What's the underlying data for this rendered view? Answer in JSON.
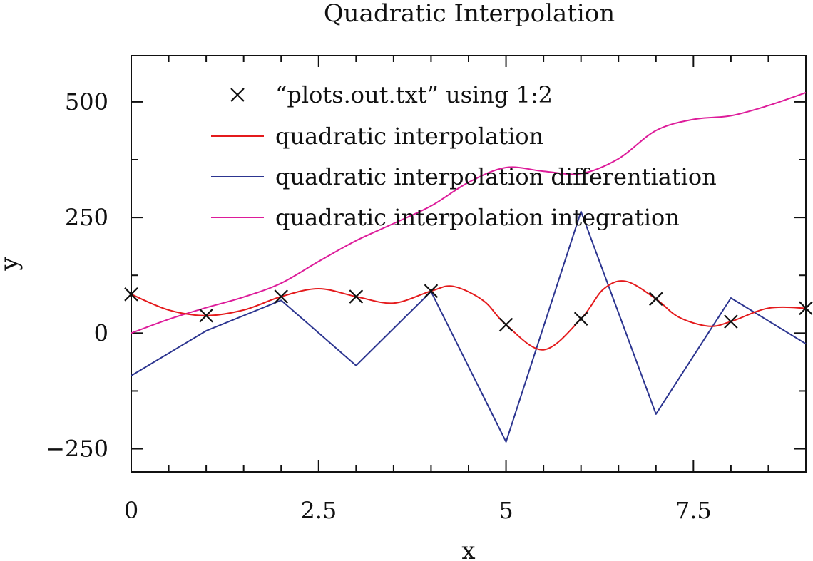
{
  "chart_data": {
    "type": "line",
    "title": "Quadratic Interpolation",
    "xlabel": "x",
    "ylabel": "y",
    "xlim": [
      0,
      9
    ],
    "ylim": [
      -300,
      600
    ],
    "xticks": [
      0,
      2.5,
      5,
      7.5
    ],
    "xtick_labels": [
      "0",
      "2.5",
      "5",
      "7.5"
    ],
    "yticks": [
      -250,
      0,
      250,
      500
    ],
    "ytick_labels": [
      "−250",
      "0",
      "250",
      "500"
    ],
    "grid": false,
    "legend_position": "top-right",
    "series": [
      {
        "name": "“plots.out.txt” using 1:2",
        "style": "points",
        "marker": "x",
        "color": "#111111",
        "x": [
          0,
          1,
          2,
          3,
          4,
          5,
          6,
          7,
          8,
          9
        ],
        "y": [
          84,
          38,
          79,
          79,
          91,
          18,
          31,
          74,
          25,
          54
        ]
      },
      {
        "name": "quadratic interpolation",
        "style": "line",
        "color": "#e41a1c",
        "x": [
          0,
          0.5,
          1,
          1.5,
          2,
          2.5,
          3,
          3.5,
          4,
          4.3,
          4.7,
          5,
          5.5,
          6,
          6.3,
          6.6,
          7,
          7.3,
          7.7,
          8,
          8.5,
          9
        ],
        "y": [
          84,
          50,
          38,
          50,
          79,
          96,
          79,
          65,
          91,
          101,
          70,
          18,
          -36,
          31,
          95,
          112,
          74,
          35,
          15,
          25,
          54,
          54
        ]
      },
      {
        "name": "quadratic interpolation differentiation",
        "style": "line",
        "color": "#2c3590",
        "x": [
          0,
          1,
          2,
          3,
          4,
          5,
          6,
          7,
          8,
          9
        ],
        "y": [
          -92,
          5,
          71,
          -70,
          90,
          -235,
          263,
          -175,
          76,
          -23
        ]
      },
      {
        "name": "quadratic interpolation integration",
        "style": "line",
        "color": "#dd1c9a",
        "x": [
          0,
          0.5,
          1,
          1.5,
          2,
          2.5,
          3,
          3.5,
          4,
          4.5,
          5,
          5.5,
          6,
          6.5,
          7,
          7.5,
          8,
          8.5,
          9
        ],
        "y": [
          0,
          30,
          55,
          78,
          108,
          155,
          200,
          237,
          275,
          326,
          358,
          350,
          345,
          377,
          438,
          462,
          470,
          492,
          520
        ]
      }
    ]
  }
}
